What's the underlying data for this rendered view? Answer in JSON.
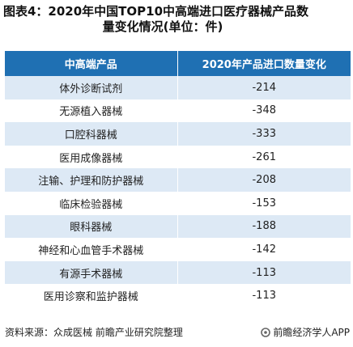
{
  "title": {
    "line1": "图表4：2020年中国TOP10中高端进口医疗器械产品数",
    "line2": "量变化情况(单位：件)"
  },
  "table": {
    "headers": [
      "中高端产品",
      "2020年产品进口数量变化"
    ],
    "rows": [
      {
        "product": "体外诊断试剂",
        "change": "-214"
      },
      {
        "product": "无源植入器械",
        "change": "-348"
      },
      {
        "product": "口腔科器械",
        "change": "-333"
      },
      {
        "product": "医用成像器械",
        "change": "-261"
      },
      {
        "product": "注输、护理和防护器械",
        "change": "-208"
      },
      {
        "product": "临床检验器械",
        "change": "-153"
      },
      {
        "product": "眼科器械",
        "change": "-188"
      },
      {
        "product": "神经和心血管手术器械",
        "change": "-142"
      },
      {
        "product": "有源手术器械",
        "change": "-113"
      },
      {
        "product": "医用诊察和监护器械",
        "change": "-113"
      }
    ]
  },
  "footer": {
    "source": "资料来源：众成医械 前瞻产业研究院整理",
    "brand": "前瞻经济学人APP"
  },
  "colors": {
    "header_bg": "#1f70b3",
    "stripe_bg": "#dde9f5"
  }
}
